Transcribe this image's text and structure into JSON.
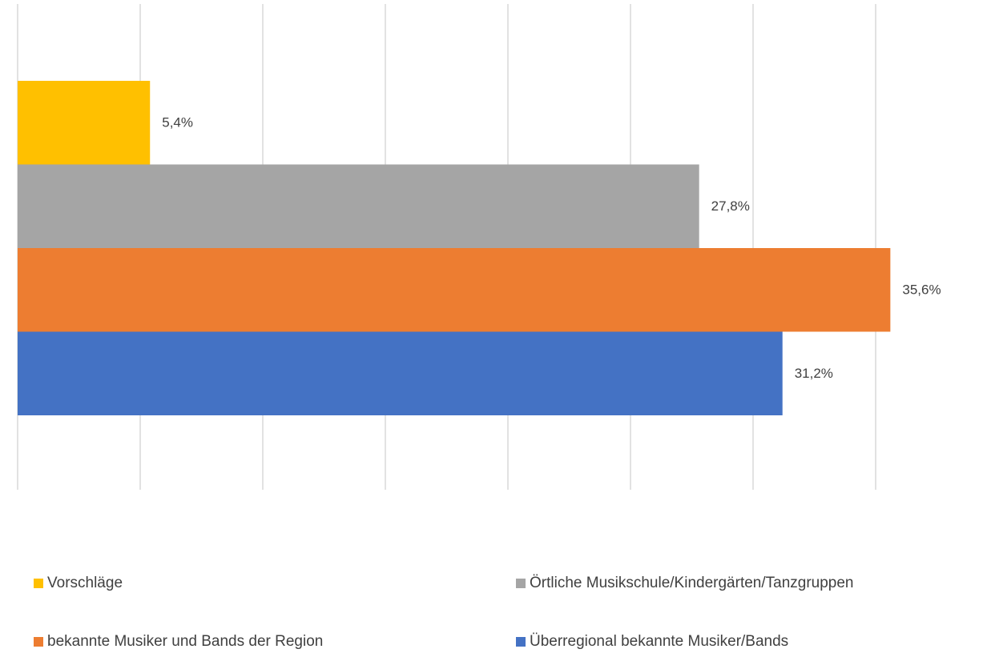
{
  "chart_data": {
    "type": "hbar",
    "categories": [
      null
    ],
    "series": [
      {
        "name": "Vorschläge",
        "color": "#ffc000",
        "values": [
          5.4
        ],
        "value_labels": [
          "5,4%"
        ]
      },
      {
        "name": "Örtliche Musikschule/Kindergärten/Tanzgruppen",
        "color": "#a5a5a5",
        "values": [
          27.8
        ],
        "value_labels": [
          "27,8%"
        ]
      },
      {
        "name": "bekannte Musiker und Bands der Region",
        "color": "#ed7d31",
        "values": [
          35.6
        ],
        "value_labels": [
          "35,6%"
        ]
      },
      {
        "name": "Überregional bekannte Musiker/Bands",
        "color": "#4472c4",
        "values": [
          31.2
        ],
        "value_labels": [
          "31,2%"
        ]
      }
    ],
    "xlim": [
      0,
      35
    ],
    "xticks": [
      0,
      5,
      10,
      15,
      20,
      25,
      30,
      35
    ],
    "grid": true,
    "legend": "bottom"
  }
}
